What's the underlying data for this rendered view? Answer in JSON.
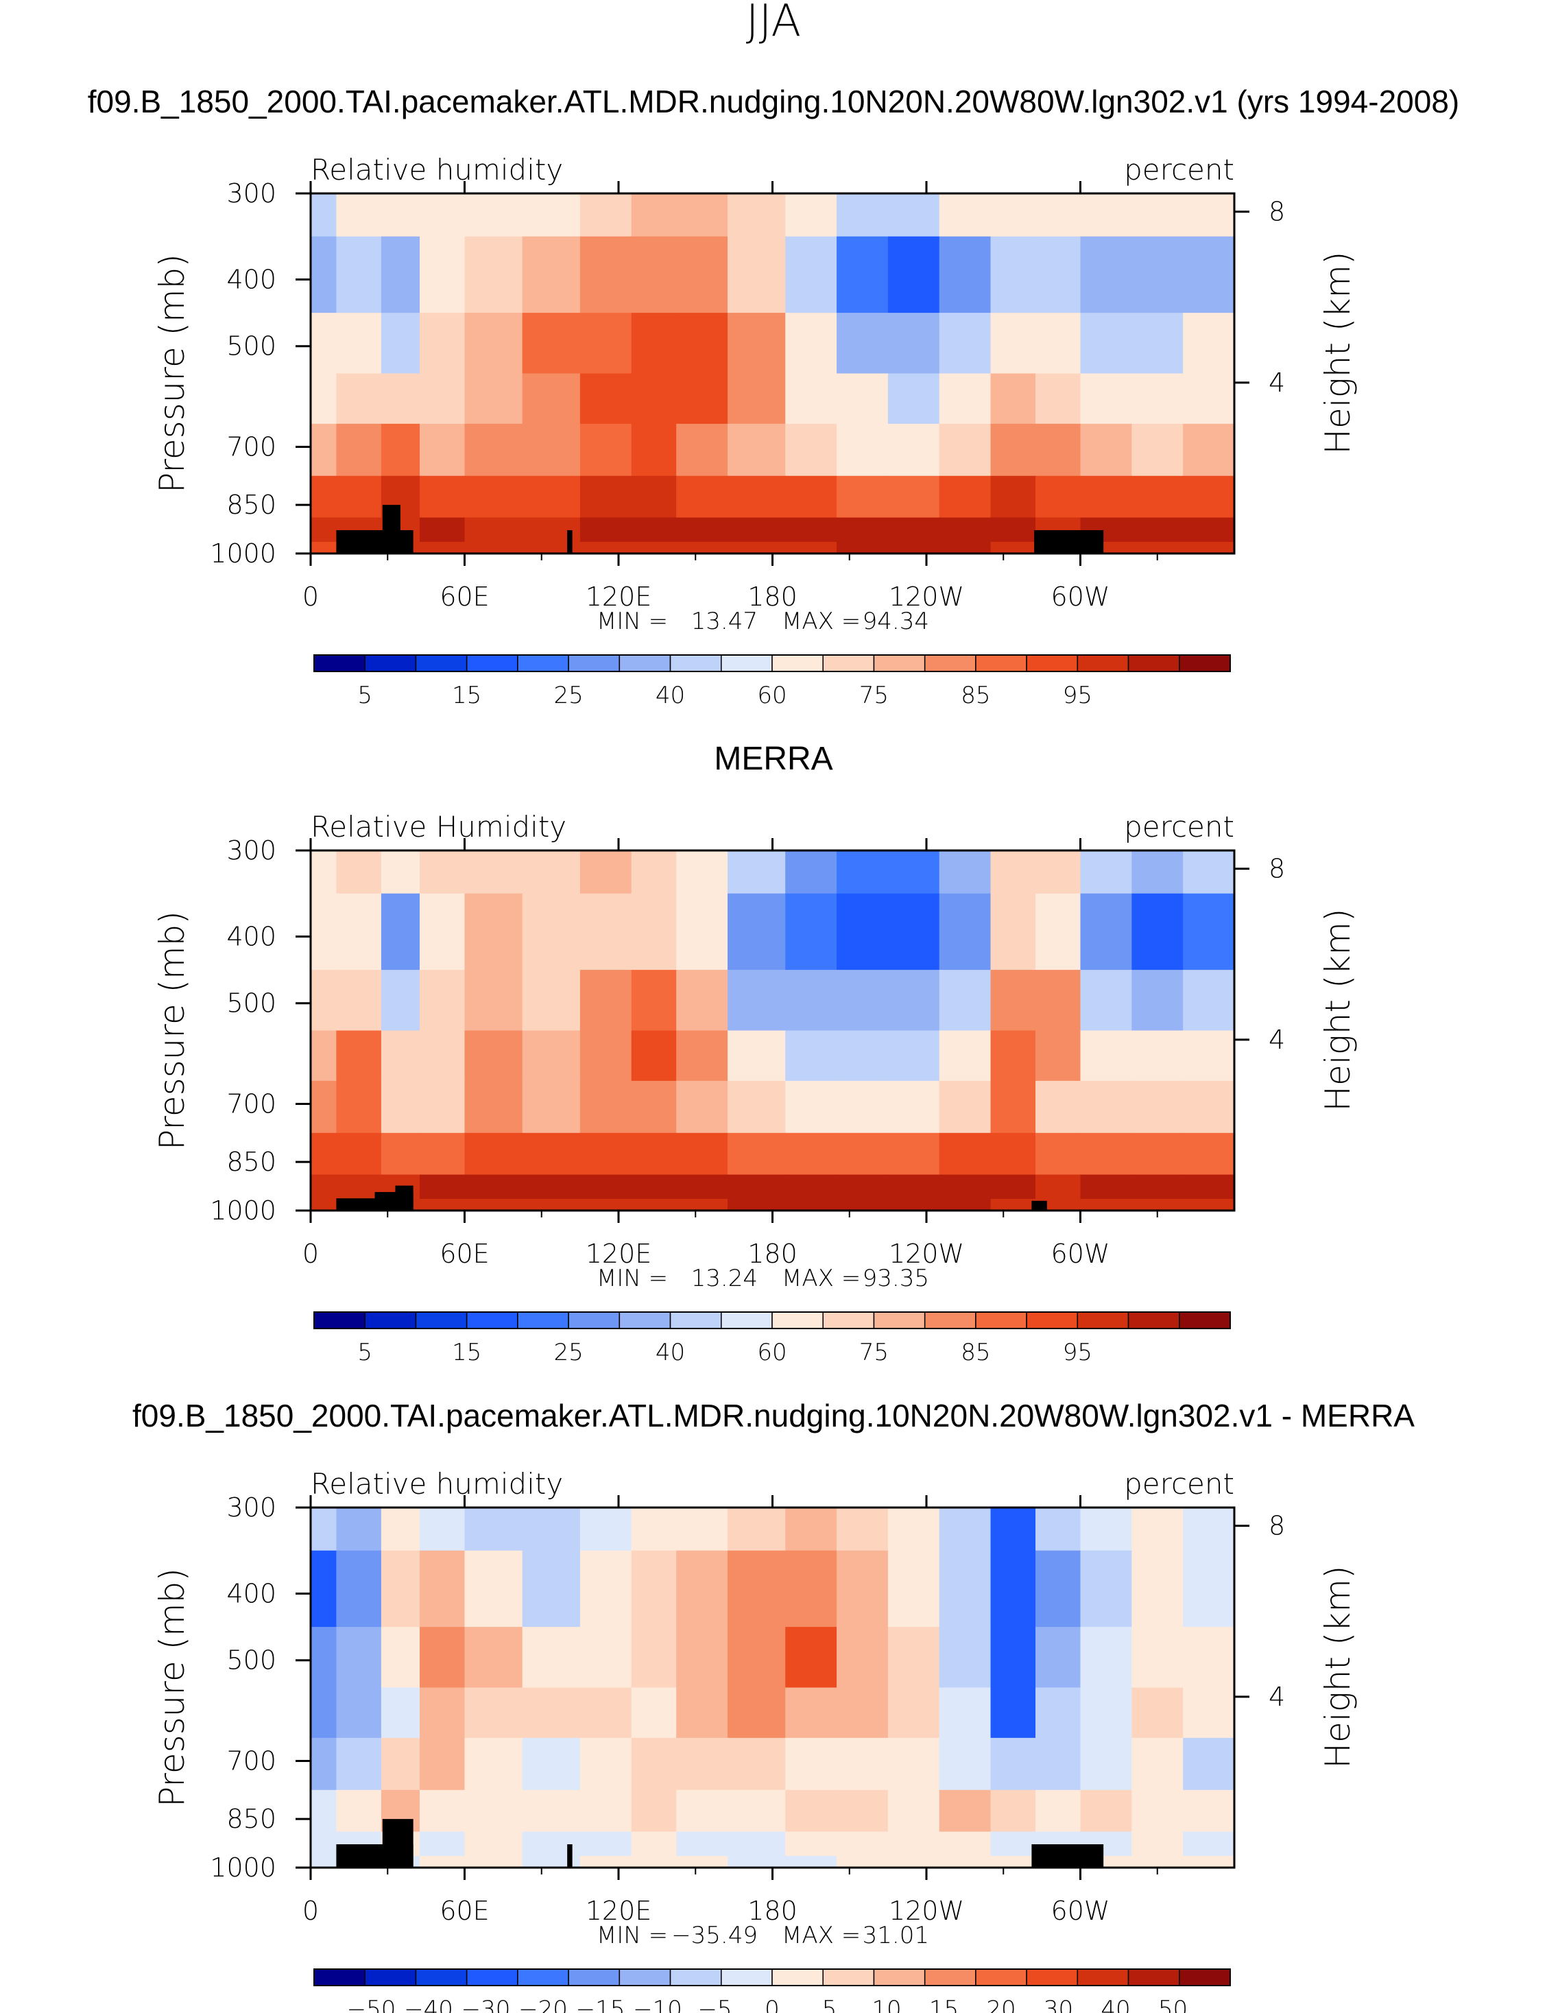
{
  "page_title": "JJA",
  "colorbar_colors": [
    "#00008c",
    "#0020c8",
    "#0a41e6",
    "#1e5aff",
    "#3c78ff",
    "#6e96f5",
    "#96b4f5",
    "#bed2fa",
    "#dde9fb",
    "#fdeadb",
    "#fdd5bf",
    "#fab496",
    "#f58c64",
    "#f56a3c",
    "#eb4b1e",
    "#d23210",
    "#b41e0a",
    "#8c0a0a"
  ],
  "lon_ticks": [
    "0",
    "60E",
    "120E",
    "180",
    "120W",
    "60W"
  ],
  "pressure_ticks": [
    "300",
    "400",
    "500",
    "700",
    "850",
    "1000"
  ],
  "height_ticks": [
    "8",
    "4"
  ],
  "left_axis_label": "Pressure (mb)",
  "right_axis_label": "Height (km)",
  "panels": [
    {
      "title": "f09.B_1850_2000.TAI.pacemaker.ATL.MDR.nudging.10N20N.20W80W.lgn302.v1 (yrs 1994-2008)",
      "variable": "Relative humidity",
      "units": "percent",
      "min_label": "MIN =",
      "min_value": "13.47",
      "max_label": "MAX =",
      "max_value": "94.34",
      "colorbar_labels": [
        "5",
        "15",
        "25",
        "40",
        "60",
        "75",
        "85",
        "95"
      ]
    },
    {
      "title": "MERRA",
      "variable": "Relative Humidity",
      "units": "percent",
      "min_label": "MIN =",
      "min_value": "13.24",
      "max_label": "MAX =",
      "max_value": "93.35",
      "colorbar_labels": [
        "5",
        "15",
        "25",
        "40",
        "60",
        "75",
        "85",
        "95"
      ]
    },
    {
      "title": "f09.B_1850_2000.TAI.pacemaker.ATL.MDR.nudging.10N20N.20W80W.lgn302.v1 - MERRA",
      "variable": "Relative humidity",
      "units": "percent",
      "min_label": "MIN =",
      "min_value": "−35.49",
      "max_label": "MAX =",
      "max_value": "31.01",
      "colorbar_labels": [
        "−50",
        "−40",
        "−30",
        "−20",
        "−15",
        "−10",
        "−5",
        "0",
        "5",
        "10",
        "15",
        "20",
        "30",
        "40",
        "50"
      ]
    }
  ],
  "chart_data": [
    {
      "type": "heatmap",
      "title": "f09.B_1850_2000.TAI.pacemaker.ATL.MDR.nudging.10N20N.20W80W.lgn302.v1 (yrs 1994-2008)",
      "variable": "Relative humidity",
      "units": "percent",
      "xlabel": "",
      "ylabel": "Pressure (mb)",
      "y2label": "Height (km)",
      "xlim": [
        0,
        360
      ],
      "ylim": [
        1000,
        300
      ],
      "min": 13.47,
      "max": 94.34,
      "levels": [
        5,
        10,
        15,
        20,
        25,
        30,
        40,
        50,
        60,
        65,
        70,
        75,
        80,
        85,
        90,
        95
      ],
      "lon": [
        0,
        20,
        35,
        50,
        70,
        95,
        115,
        135,
        150,
        175,
        195,
        215,
        235,
        255,
        275,
        290,
        310,
        330,
        350
      ],
      "pressure": [
        300,
        400,
        500,
        600,
        700,
        850,
        925,
        1000
      ],
      "grid": [
        [
          49,
          52,
          52,
          56,
          57,
          56,
          60,
          65,
          65,
          60,
          52,
          47,
          47,
          52,
          57,
          55,
          52,
          52,
          53
        ],
        [
          37,
          42,
          30,
          55,
          62,
          68,
          70,
          72,
          73,
          63,
          40,
          22,
          18,
          28,
          45,
          40,
          34,
          30,
          35
        ],
        [
          50,
          52,
          44,
          62,
          66,
          75,
          79,
          80,
          80,
          70,
          52,
          38,
          34,
          40,
          58,
          55,
          48,
          47,
          50
        ],
        [
          58,
          60,
          62,
          64,
          68,
          73,
          80,
          82,
          80,
          70,
          58,
          50,
          48,
          52,
          65,
          62,
          58,
          57,
          58
        ],
        [
          66,
          70,
          75,
          68,
          70,
          72,
          76,
          80,
          74,
          68,
          62,
          57,
          55,
          60,
          74,
          70,
          65,
          64,
          65
        ],
        [
          82,
          83,
          85,
          82,
          80,
          82,
          85,
          85,
          84,
          82,
          80,
          79,
          78,
          80,
          86,
          84,
          82,
          81,
          82
        ],
        [
          86,
          86,
          88,
          90,
          88,
          88,
          90,
          90,
          90,
          92,
          92,
          93,
          93,
          94,
          90,
          89,
          90,
          91,
          90
        ],
        [
          84,
          84,
          85,
          88,
          87,
          87,
          88,
          88,
          88,
          89,
          89,
          90,
          90,
          90,
          88,
          87,
          88,
          88,
          88
        ]
      ]
    },
    {
      "type": "heatmap",
      "title": "MERRA",
      "variable": "Relative Humidity",
      "units": "percent",
      "xlabel": "",
      "ylabel": "Pressure (mb)",
      "y2label": "Height (km)",
      "xlim": [
        0,
        360
      ],
      "ylim": [
        1000,
        300
      ],
      "min": 13.24,
      "max": 93.35,
      "levels": [
        5,
        10,
        15,
        20,
        25,
        30,
        40,
        50,
        60,
        65,
        70,
        75,
        80,
        85,
        90,
        95
      ],
      "lon": [
        0,
        20,
        35,
        50,
        70,
        95,
        115,
        135,
        150,
        175,
        195,
        215,
        235,
        255,
        275,
        290,
        310,
        330,
        350
      ],
      "pressure": [
        300,
        400,
        500,
        600,
        700,
        850,
        925,
        1000
      ],
      "grid": [
        [
          58,
          60,
          52,
          62,
          64,
          60,
          66,
          62,
          58,
          40,
          28,
          22,
          24,
          36,
          60,
          62,
          45,
          36,
          40
        ],
        [
          56,
          58,
          25,
          56,
          66,
          62,
          64,
          62,
          56,
          26,
          20,
          15,
          16,
          25,
          62,
          58,
          26,
          18,
          24
        ],
        [
          60,
          64,
          45,
          60,
          66,
          64,
          70,
          76,
          66,
          38,
          32,
          30,
          32,
          42,
          74,
          70,
          44,
          38,
          46
        ],
        [
          66,
          76,
          62,
          62,
          70,
          66,
          74,
          80,
          70,
          50,
          46,
          46,
          48,
          55,
          78,
          70,
          55,
          50,
          56
        ],
        [
          72,
          78,
          64,
          64,
          70,
          68,
          74,
          74,
          68,
          62,
          58,
          57,
          58,
          62,
          76,
          64,
          62,
          60,
          62
        ],
        [
          82,
          80,
          78,
          76,
          80,
          80,
          82,
          80,
          80,
          79,
          78,
          78,
          79,
          80,
          84,
          78,
          78,
          77,
          78
        ],
        [
          88,
          86,
          86,
          90,
          90,
          90,
          91,
          90,
          90,
          92,
          93,
          93,
          93,
          92,
          90,
          88,
          90,
          91,
          90
        ],
        [
          87,
          86,
          86,
          88,
          88,
          88,
          88,
          88,
          88,
          90,
          90,
          90,
          90,
          90,
          88,
          87,
          88,
          88,
          88
        ]
      ]
    },
    {
      "type": "heatmap",
      "title": "f09.B_1850_2000.TAI.pacemaker.ATL.MDR.nudging.10N20N.20W80W.lgn302.v1 - MERRA",
      "variable": "Relative humidity",
      "units": "percent",
      "xlabel": "",
      "ylabel": "Pressure (mb)",
      "y2label": "Height (km)",
      "xlim": [
        0,
        360
      ],
      "ylim": [
        1000,
        300
      ],
      "min": -35.49,
      "max": 31.01,
      "levels": [
        -50,
        -40,
        -30,
        -20,
        -15,
        -10,
        -5,
        0,
        5,
        10,
        15,
        20,
        30,
        40,
        50
      ],
      "lon": [
        0,
        20,
        35,
        50,
        70,
        95,
        115,
        135,
        150,
        175,
        195,
        215,
        235,
        255,
        275,
        290,
        310,
        330,
        350
      ],
      "pressure": [
        300,
        400,
        500,
        600,
        700,
        850,
        925,
        1000
      ],
      "grid": [
        [
          -10,
          -12,
          2,
          -4,
          -6,
          -8,
          -4,
          2,
          4,
          8,
          10,
          6,
          3,
          -8,
          -22,
          -10,
          -4,
          2,
          -2
        ],
        [
          -22,
          -16,
          6,
          12,
          4,
          -6,
          4,
          6,
          10,
          16,
          18,
          12,
          4,
          -10,
          -30,
          -16,
          -6,
          4,
          -2
        ],
        [
          -20,
          -12,
          4,
          18,
          10,
          2,
          4,
          5,
          12,
          16,
          22,
          14,
          6,
          -8,
          -28,
          -14,
          -4,
          3,
          1
        ],
        [
          -16,
          -14,
          -2,
          14,
          8,
          6,
          6,
          4,
          10,
          18,
          14,
          10,
          8,
          -4,
          -22,
          -8,
          -2,
          6,
          2
        ],
        [
          -12,
          -10,
          8,
          12,
          2,
          -2,
          2,
          6,
          6,
          6,
          4,
          4,
          2,
          -2,
          -10,
          -6,
          -2,
          4,
          -6
        ],
        [
          -2,
          4,
          14,
          4,
          2,
          4,
          4,
          8,
          4,
          4,
          8,
          6,
          4,
          12,
          6,
          3,
          5,
          4,
          2
        ],
        [
          -2,
          -2,
          2,
          -2,
          0,
          -2,
          -1,
          0,
          -2,
          -1,
          0,
          0,
          1,
          0,
          -2,
          -3,
          -1,
          0,
          -1
        ],
        [
          -3,
          -2,
          -1,
          0,
          0,
          -1,
          0,
          0,
          0,
          -1,
          -1,
          0,
          0,
          0,
          0,
          0,
          0,
          0,
          0
        ]
      ]
    }
  ]
}
